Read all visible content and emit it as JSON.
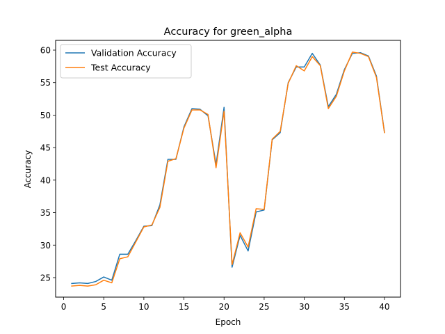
{
  "chart_data": {
    "type": "line",
    "title": "Accuracy for green_alpha",
    "xlabel": "Epoch",
    "ylabel": "Accuracy",
    "xlim": [
      -1,
      42
    ],
    "ylim": [
      22,
      61.5
    ],
    "xticks": [
      0,
      5,
      10,
      15,
      20,
      25,
      30,
      35,
      40
    ],
    "yticks": [
      25,
      30,
      35,
      40,
      45,
      50,
      55,
      60
    ],
    "grid": false,
    "legend_position": "upper-left",
    "x": [
      1,
      2,
      3,
      4,
      5,
      6,
      7,
      8,
      9,
      10,
      11,
      12,
      13,
      14,
      15,
      16,
      17,
      18,
      19,
      20,
      21,
      22,
      23,
      24,
      25,
      26,
      27,
      28,
      29,
      30,
      31,
      32,
      33,
      34,
      35,
      36,
      37,
      38,
      39,
      40
    ],
    "series": [
      {
        "name": "Validation Accuracy",
        "color": "#1f77b4",
        "values": [
          24.1,
          24.2,
          24.1,
          24.4,
          25.1,
          24.6,
          28.6,
          28.6,
          30.7,
          32.9,
          33.0,
          36.2,
          43.2,
          43.2,
          48.2,
          51.0,
          50.9,
          49.9,
          42.4,
          51.2,
          26.6,
          31.5,
          29.1,
          35.1,
          35.4,
          46.2,
          47.3,
          55.0,
          57.4,
          57.4,
          59.5,
          57.7,
          51.3,
          53.2,
          57.0,
          59.5,
          59.6,
          59.1,
          56.0,
          47.4
        ]
      },
      {
        "name": "Test Accuracy",
        "color": "#ff7f0e",
        "values": [
          23.7,
          23.8,
          23.7,
          23.9,
          24.6,
          24.2,
          27.9,
          28.2,
          30.5,
          32.8,
          33.1,
          35.8,
          42.9,
          43.3,
          48.0,
          50.8,
          50.8,
          50.1,
          41.9,
          50.6,
          27.0,
          31.9,
          29.7,
          35.6,
          35.5,
          46.3,
          47.5,
          54.9,
          57.6,
          56.8,
          59.0,
          57.6,
          51.0,
          52.9,
          56.8,
          59.7,
          59.5,
          59.0,
          55.8,
          47.3
        ]
      }
    ]
  }
}
